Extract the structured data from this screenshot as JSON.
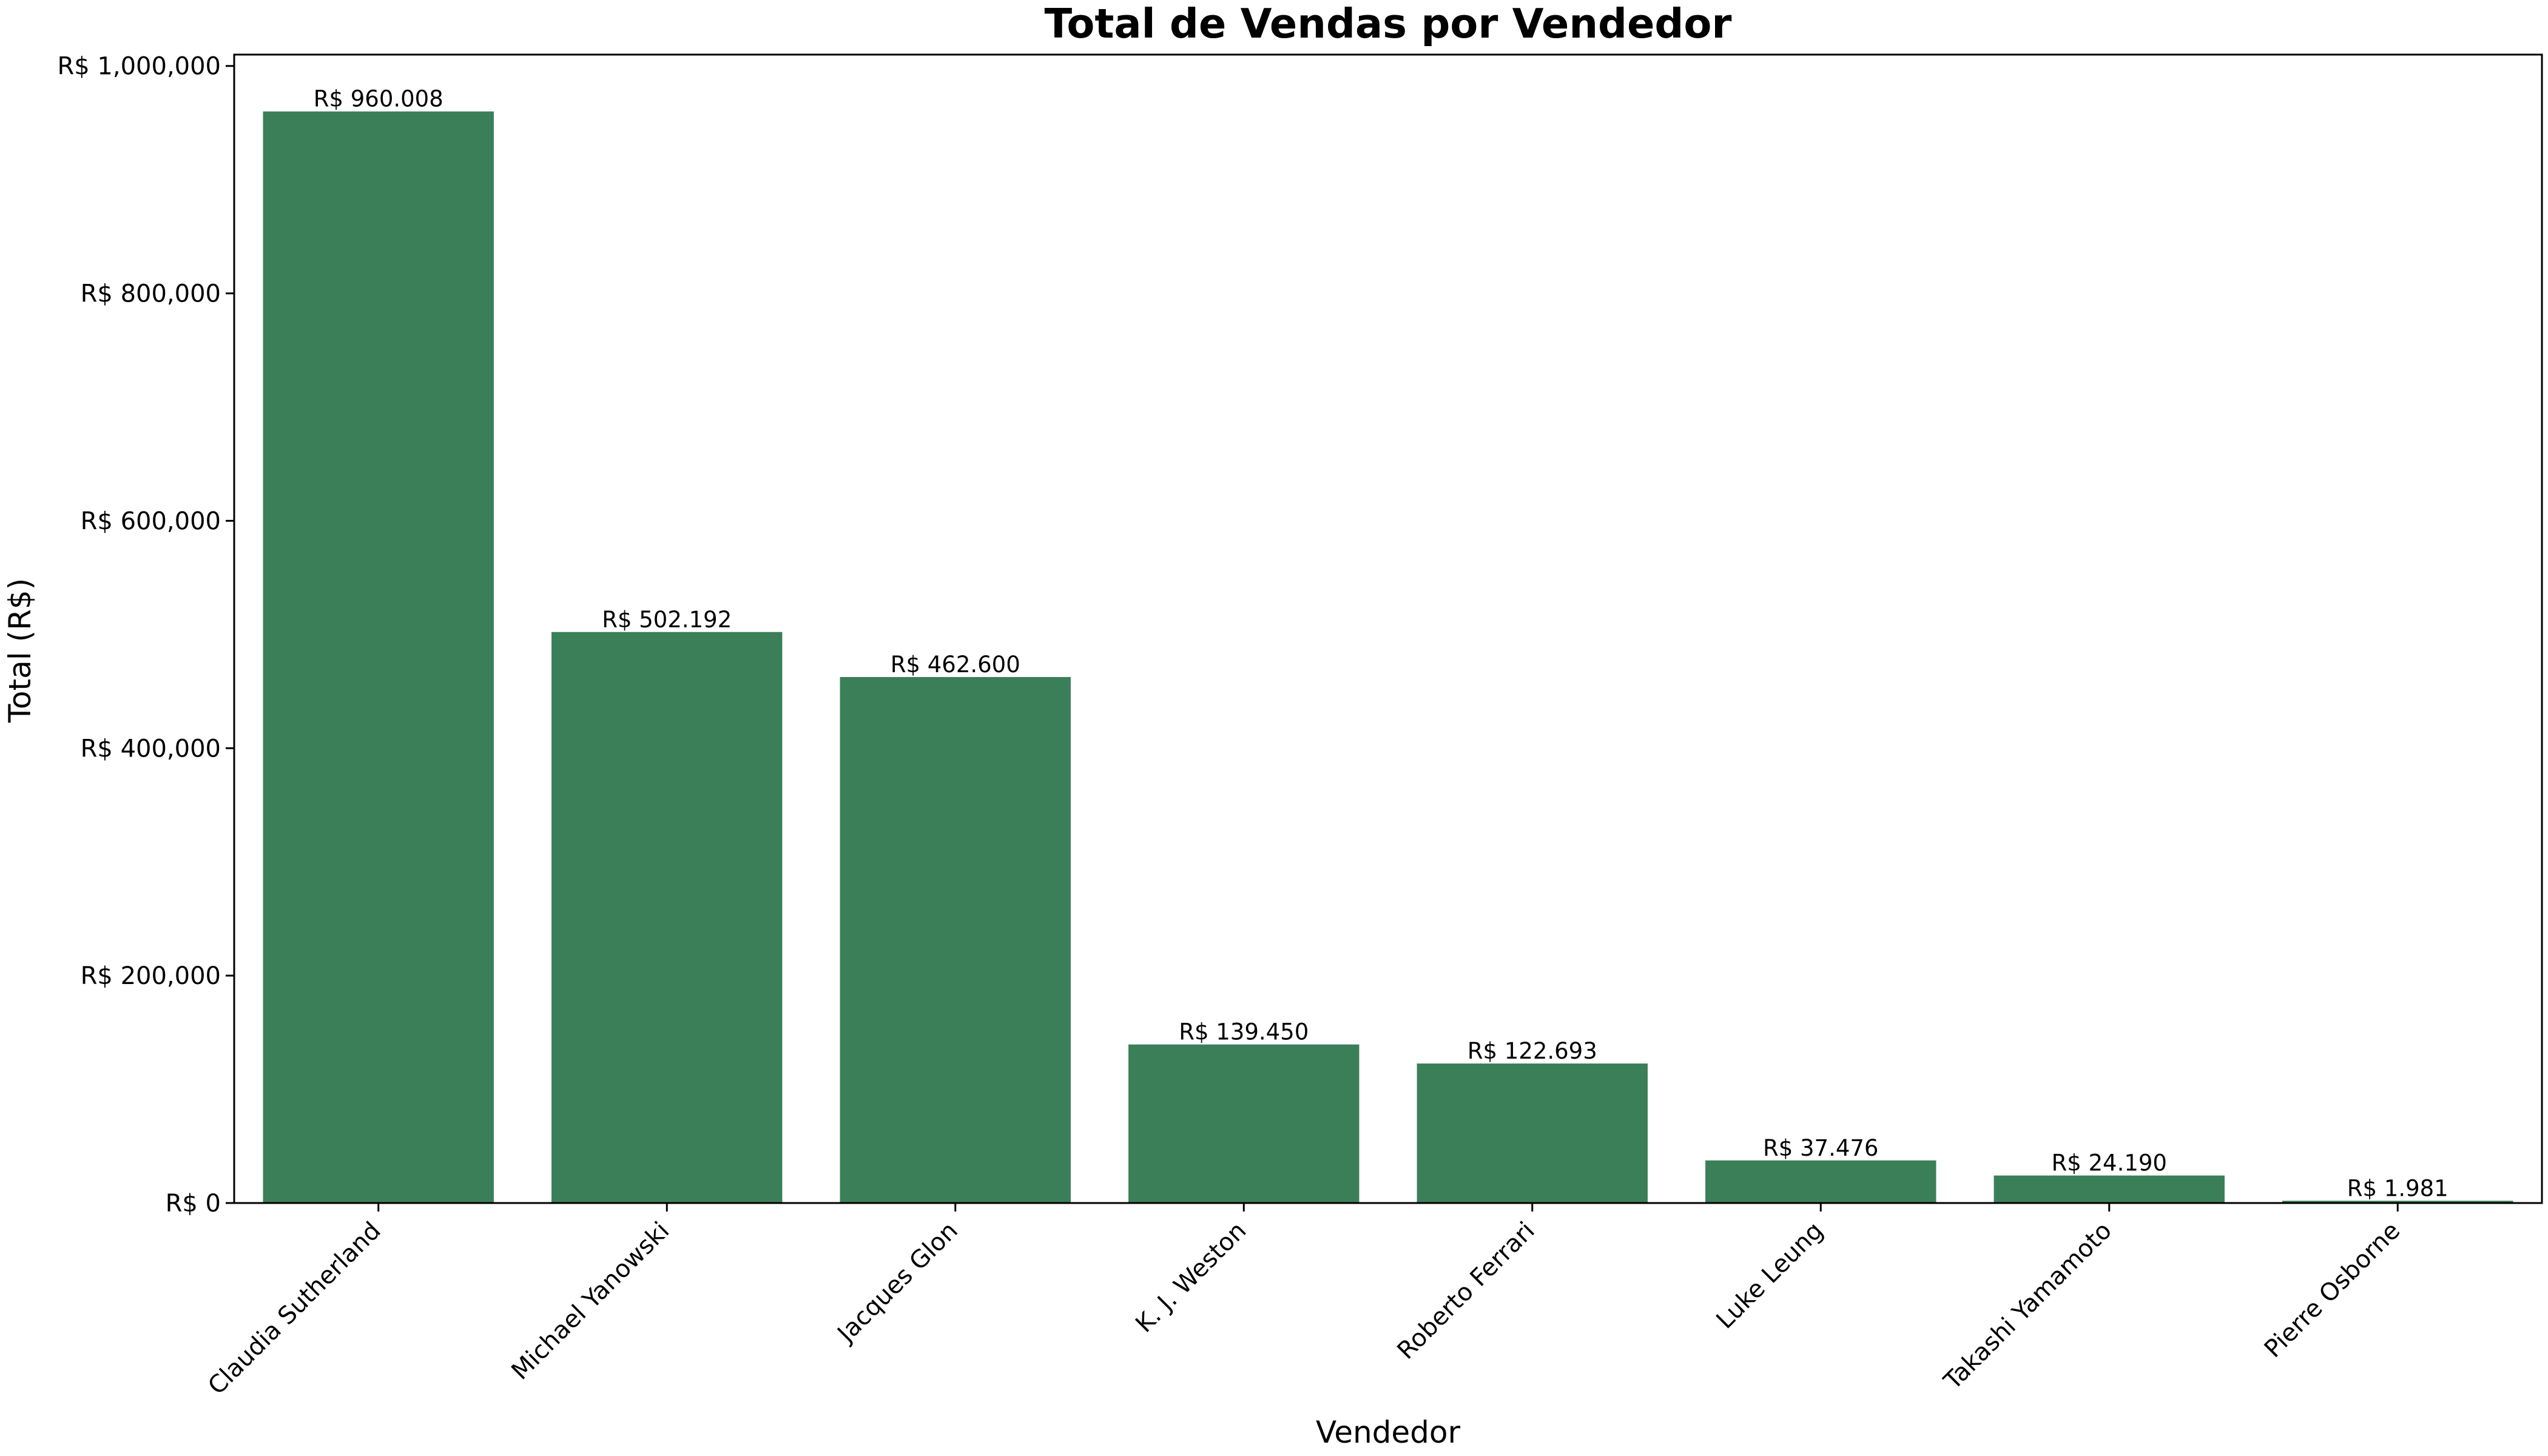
{
  "chart_data": {
    "type": "bar",
    "title": "Total de Vendas por Vendedor",
    "xlabel": "Vendedor",
    "ylabel": "Total (R$)",
    "categories": [
      "Claudia Sutherland",
      "Michael Yanowski",
      "Jacques Glon",
      "K. J. Weston",
      "Roberto Ferrari",
      "Luke Leung",
      "Takashi Yamamoto",
      "Pierre Osborne"
    ],
    "values": [
      960008,
      502192,
      462600,
      139450,
      122693,
      37476,
      24190,
      1981
    ],
    "value_labels": [
      "R$ 960.008",
      "R$ 502.192",
      "R$ 462.600",
      "R$ 139.450",
      "R$ 122.693",
      "R$ 37.476",
      "R$ 24.190",
      "R$ 1.981"
    ],
    "ylim": [
      0,
      1010000
    ],
    "yticks": [
      0,
      200000,
      400000,
      600000,
      800000,
      1000000
    ],
    "ytick_labels": [
      "R$ 0",
      "R$ 200,000",
      "R$ 400,000",
      "R$ 600,000",
      "R$ 800,000",
      "R$ 1,000,000"
    ],
    "grid": false,
    "legend": "none",
    "bar_color": "#3b7f58"
  }
}
